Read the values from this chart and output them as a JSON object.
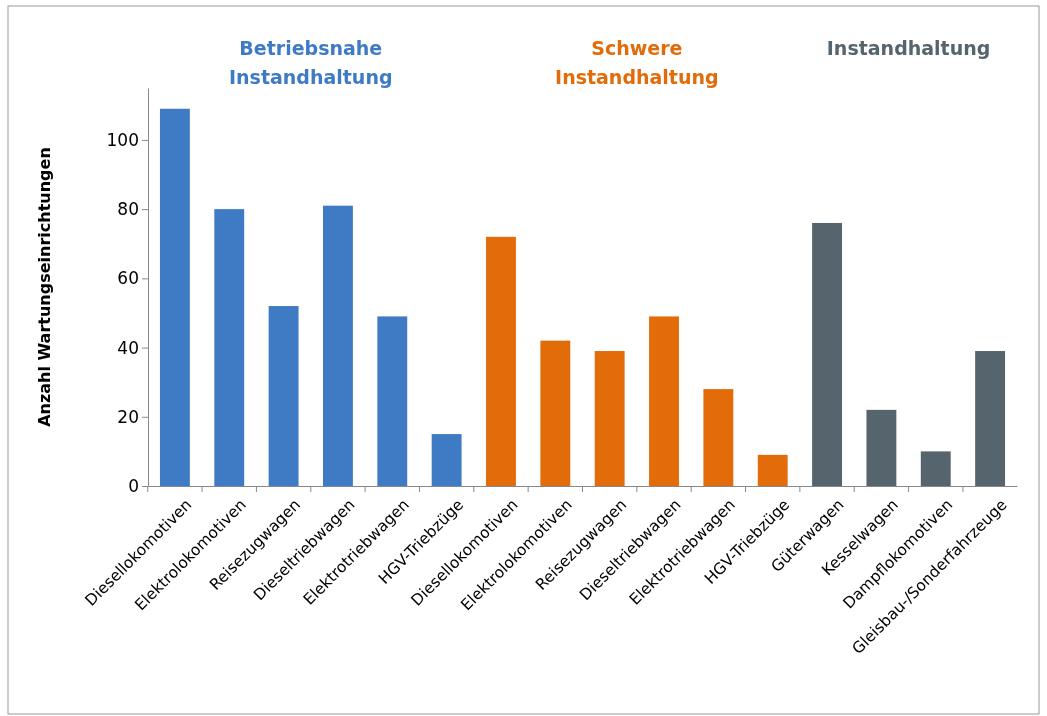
{
  "chart_data": {
    "type": "bar",
    "ylabel": "Anzahl Wartungseinrichtungen",
    "categories": [
      "Diesellokomotiven",
      "Elektrolokomotiven",
      "Reisezugwagen",
      "Dieseltriebwagen",
      "Elektrotriebwagen",
      "HGV-Triebzüge",
      "Diesellokomotiven",
      "Elektrolokomotiven",
      "Reisezugwagen",
      "Dieseltriebwagen",
      "Elektrotriebwagen",
      "HGV-Triebzüge",
      "Güterwagen",
      "Kesselwagen",
      "Dampflokomotiven",
      "Gleisbau-/Sonderfahrzeuge"
    ],
    "series": [
      {
        "name": "Betriebsnahe Instandhaltung",
        "color": "#3f7bc4",
        "values": [
          109,
          80,
          52,
          81,
          49,
          15,
          null,
          null,
          null,
          null,
          null,
          null,
          null,
          null,
          null,
          null
        ]
      },
      {
        "name": "Schwere Instandhaltung",
        "color": "#e36c0a",
        "values": [
          null,
          null,
          null,
          null,
          null,
          null,
          72,
          42,
          39,
          49,
          28,
          9,
          null,
          null,
          null,
          null
        ]
      },
      {
        "name": "Instandhaltung",
        "color": "#56646e",
        "values": [
          null,
          null,
          null,
          null,
          null,
          null,
          null,
          null,
          null,
          null,
          null,
          null,
          76,
          22,
          10,
          39
        ]
      }
    ],
    "ylim": [
      0,
      115
    ],
    "yticks": [
      0,
      20,
      40,
      60,
      80,
      100
    ],
    "grid": false,
    "legend": false
  }
}
